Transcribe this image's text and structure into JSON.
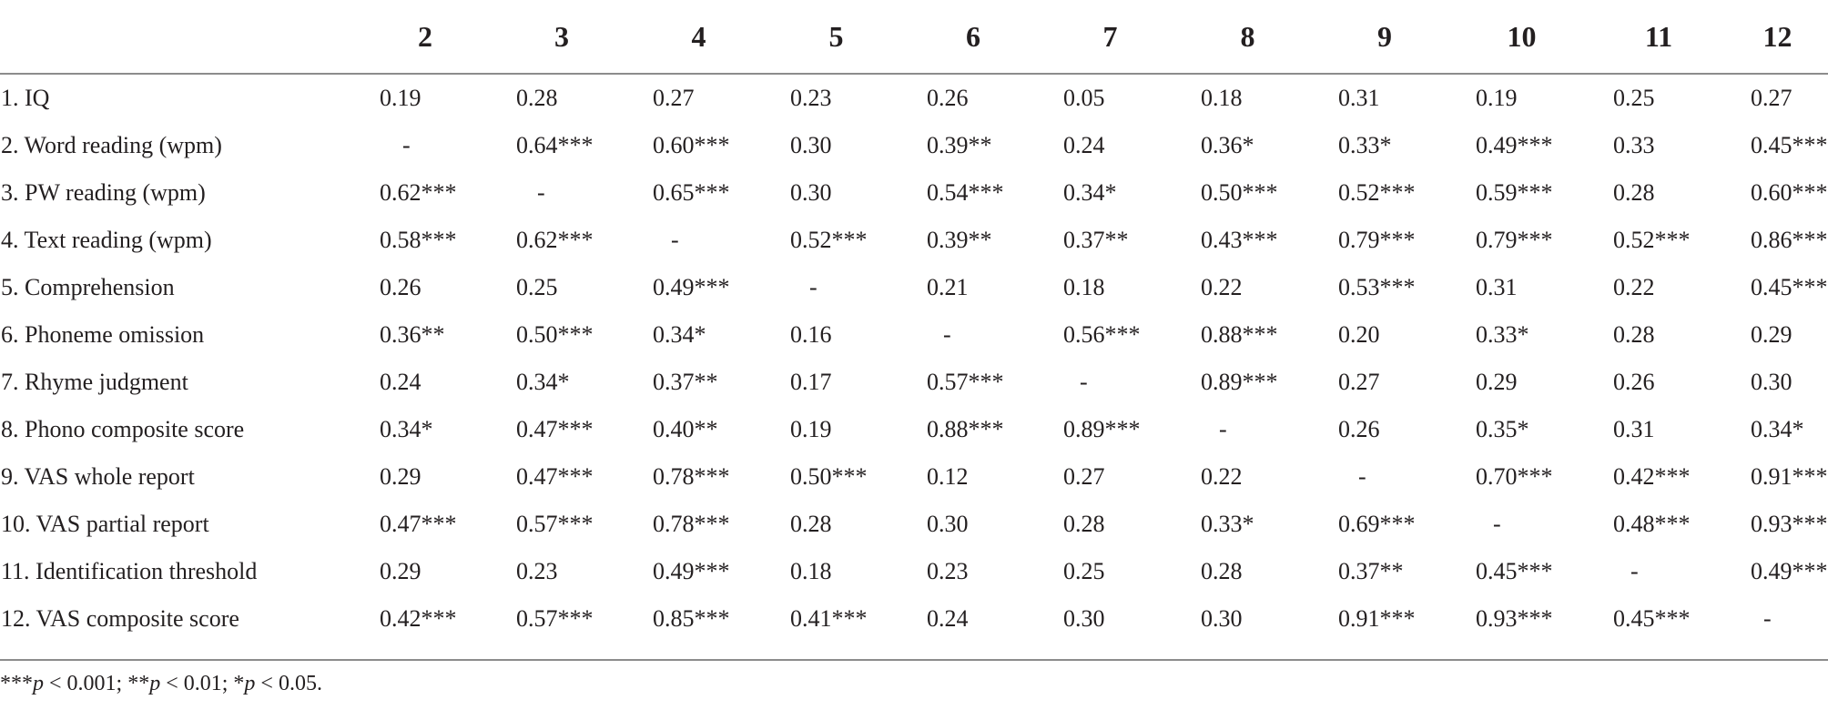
{
  "table": {
    "header": [
      "",
      "2",
      "3",
      "4",
      "5",
      "6",
      "7",
      "8",
      "9",
      "10",
      "11",
      "12"
    ],
    "rows": [
      {
        "label": "1. IQ",
        "values": [
          "0.19",
          "0.28",
          "0.27",
          "0.23",
          "0.26",
          "0.05",
          "0.18",
          "0.31",
          "0.19",
          "0.25",
          "0.27"
        ]
      },
      {
        "label": "2. Word reading (wpm)",
        "values": [
          "-",
          "0.64***",
          "0.60***",
          "0.30",
          "0.39**",
          "0.24",
          "0.36*",
          "0.33*",
          "0.49***",
          "0.33",
          "0.45***"
        ]
      },
      {
        "label": "3. PW reading (wpm)",
        "values": [
          "0.62***",
          "-",
          "0.65***",
          "0.30",
          "0.54***",
          "0.34*",
          "0.50***",
          "0.52***",
          "0.59***",
          "0.28",
          "0.60***"
        ]
      },
      {
        "label": "4. Text reading (wpm)",
        "values": [
          "0.58***",
          "0.62***",
          "-",
          "0.52***",
          "0.39**",
          "0.37**",
          "0.43***",
          "0.79***",
          "0.79***",
          "0.52***",
          "0.86***"
        ]
      },
      {
        "label": "5. Comprehension",
        "values": [
          "0.26",
          "0.25",
          "0.49***",
          "-",
          "0.21",
          "0.18",
          "0.22",
          "0.53***",
          "0.31",
          "0.22",
          "0.45***"
        ]
      },
      {
        "label": "6. Phoneme omission",
        "values": [
          "0.36**",
          "0.50***",
          "0.34*",
          "0.16",
          "-",
          "0.56***",
          "0.88***",
          "0.20",
          "0.33*",
          "0.28",
          "0.29"
        ]
      },
      {
        "label": "7. Rhyme judgment",
        "values": [
          "0.24",
          "0.34*",
          "0.37**",
          "0.17",
          "0.57***",
          "-",
          "0.89***",
          "0.27",
          "0.29",
          "0.26",
          "0.30"
        ]
      },
      {
        "label": "8. Phono composite score",
        "values": [
          "0.34*",
          "0.47***",
          "0.40**",
          "0.19",
          "0.88***",
          "0.89***",
          "-",
          "0.26",
          "0.35*",
          "0.31",
          "0.34*"
        ]
      },
      {
        "label": "9. VAS whole report",
        "values": [
          "0.29",
          "0.47***",
          "0.78***",
          "0.50***",
          "0.12",
          "0.27",
          "0.22",
          "-",
          "0.70***",
          "0.42***",
          "0.91***"
        ]
      },
      {
        "label": "10. VAS partial report",
        "values": [
          "0.47***",
          "0.57***",
          "0.78***",
          "0.28",
          "0.30",
          "0.28",
          "0.33*",
          "0.69***",
          "-",
          "0.48***",
          "0.93***"
        ]
      },
      {
        "label": "11. Identification threshold",
        "values": [
          "0.29",
          "0.23",
          "0.49***",
          "0.18",
          "0.23",
          "0.25",
          "0.28",
          "0.37**",
          "0.45***",
          "-",
          "0.49***"
        ]
      },
      {
        "label": "12. VAS composite score",
        "values": [
          "0.42***",
          "0.57***",
          "0.85***",
          "0.41***",
          "0.24",
          "0.30",
          "0.30",
          "0.91***",
          "0.93***",
          "0.45***",
          "-"
        ]
      }
    ]
  },
  "footnote": {
    "parts": [
      {
        "text": "***",
        "italic": false
      },
      {
        "text": "p",
        "italic": true
      },
      {
        "text": " < 0.001; **",
        "italic": false
      },
      {
        "text": "p",
        "italic": true
      },
      {
        "text": " < 0.01; *",
        "italic": false
      },
      {
        "text": "p",
        "italic": true
      },
      {
        "text": " < 0.05.",
        "italic": false
      }
    ]
  }
}
